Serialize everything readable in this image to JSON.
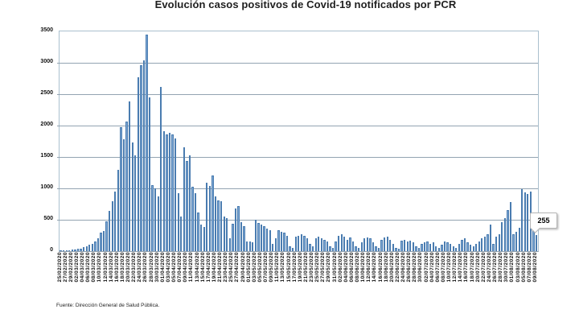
{
  "page": {
    "source_note": "Fuente: Dirección General de Salud Pública."
  },
  "chart_data": {
    "type": "bar",
    "title": "Evolución casos positivos de Covid-19 notificados por PCR",
    "xlabel": "",
    "ylabel": "",
    "ylim": [
      0,
      3500
    ],
    "ytick_step": 500,
    "ytick_labels": [
      "0",
      "500",
      "1000",
      "1500",
      "2000",
      "2500",
      "3000",
      "3500"
    ],
    "grid": true,
    "legend": "none",
    "tick_labels": [
      "25/02/2020",
      "27/02/2020",
      "29/02/2020",
      "02/03/2020",
      "04/03/2020",
      "06/03/2020",
      "08/03/2020",
      "10/03/2020",
      "12/03/2020",
      "14/03/2020",
      "16/03/2020",
      "18/03/2020",
      "20/03/2020",
      "22/03/2020",
      "24/03/2020",
      "26/03/2020",
      "28/03/2020",
      "30/03/2020",
      "01/04/2020",
      "03/04/2020",
      "05/04/2020",
      "07/04/2020",
      "09/04/2020",
      "11/04/2020",
      "13/04/2020",
      "15/04/2020",
      "17/04/2020",
      "19/04/2020",
      "21/04/2020",
      "23/04/2020",
      "25/04/2020",
      "27/04/2020",
      "29/04/2020",
      "01/05/2020",
      "03/05/2020",
      "05/05/2020",
      "07/05/2020",
      "09/05/2020",
      "11/05/2020",
      "13/05/2020",
      "15/05/2020",
      "17/05/2020",
      "19/05/2020",
      "21/05/2020",
      "23/05/2020",
      "25/05/2020",
      "27/05/2020",
      "29/05/2020",
      "31/05/2020",
      "02/06/2020",
      "04/06/2020",
      "06/06/2020",
      "08/06/2020",
      "10/06/2020",
      "12/06/2020",
      "14/06/2020",
      "16/06/2020",
      "18/06/2020",
      "20/06/2020",
      "22/06/2020",
      "24/06/2020",
      "26/06/2020",
      "28/06/2020",
      "30/06/2020",
      "02/07/2020",
      "04/07/2020",
      "06/07/2020",
      "08/07/2020",
      "10/07/2020",
      "12/07/2020",
      "14/07/2020",
      "16/07/2020",
      "18/07/2020",
      "20/07/2020",
      "22/07/2020",
      "24/07/2020",
      "26/07/2020",
      "28/07/2020",
      "30/07/2020",
      "01/08/2020",
      "03/08/2020",
      "05/08/2020",
      "07/08/2020",
      "09/08/2020"
    ],
    "values": [
      8,
      10,
      13,
      16,
      20,
      26,
      34,
      44,
      60,
      80,
      100,
      120,
      160,
      210,
      290,
      320,
      480,
      640,
      800,
      950,
      1290,
      1970,
      1780,
      2070,
      2380,
      1735,
      1520,
      2770,
      2960,
      3040,
      3450,
      2450,
      1050,
      1000,
      875,
      2620,
      1905,
      1865,
      1885,
      1865,
      1800,
      920,
      550,
      1650,
      1435,
      1520,
      1025,
      920,
      615,
      420,
      380,
      1090,
      1045,
      1200,
      875,
      810,
      790,
      550,
      525,
      205,
      440,
      675,
      720,
      460,
      400,
      160,
      160,
      140,
      505,
      455,
      420,
      395,
      355,
      335,
      120,
      205,
      335,
      310,
      290,
      250,
      75,
      55,
      225,
      250,
      270,
      250,
      205,
      120,
      75,
      205,
      225,
      205,
      185,
      160,
      75,
      55,
      160,
      250,
      270,
      230,
      185,
      215,
      160,
      75,
      55,
      140,
      205,
      215,
      205,
      140,
      75,
      55,
      185,
      215,
      225,
      185,
      120,
      55,
      45,
      170,
      185,
      160,
      170,
      140,
      75,
      55,
      120,
      140,
      160,
      120,
      140,
      75,
      55,
      100,
      160,
      140,
      120,
      75,
      55,
      120,
      185,
      205,
      140,
      100,
      75,
      120,
      160,
      205,
      225,
      270,
      420,
      120,
      225,
      270,
      460,
      525,
      655,
      780,
      270,
      310,
      375,
      985,
      930,
      910,
      955,
      355,
      255
    ],
    "annotation": {
      "text": "255",
      "bar_index": 166
    },
    "colors": {
      "bar_fill": "#7da7d4",
      "bar_border": "#4a7cb0",
      "gridline": "#93a4b2",
      "plot_border": "#aac0ce"
    }
  }
}
